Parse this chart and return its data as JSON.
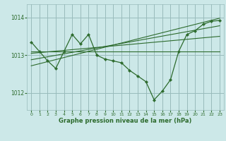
{
  "xlabel": "Graphe pression niveau de la mer (hPa)",
  "bg_color": "#cce8e8",
  "grid_color": "#99bbbb",
  "line_color": "#2d6b2d",
  "ylim": [
    1011.55,
    1014.35
  ],
  "yticks": [
    1012,
    1013,
    1014
  ],
  "xlim": [
    -0.5,
    23.5
  ],
  "xticks": [
    0,
    1,
    2,
    3,
    4,
    5,
    6,
    7,
    8,
    9,
    10,
    11,
    12,
    13,
    14,
    15,
    16,
    17,
    18,
    19,
    20,
    21,
    22,
    23
  ],
  "main_x": [
    0,
    1,
    2,
    3,
    4,
    5,
    6,
    7,
    8,
    9,
    10,
    11,
    12,
    13,
    14,
    15,
    16,
    17,
    18,
    19,
    20,
    21,
    22,
    23
  ],
  "main_y": [
    1013.35,
    1013.1,
    1012.85,
    1012.65,
    1013.1,
    1013.55,
    1013.3,
    1013.55,
    1013.0,
    1012.9,
    1012.85,
    1012.8,
    1012.6,
    1012.45,
    1012.3,
    1011.82,
    1012.05,
    1012.35,
    1013.1,
    1013.55,
    1013.65,
    1013.82,
    1013.9,
    1013.92
  ],
  "trend1_x": [
    0,
    23
  ],
  "trend1_y": [
    1013.1,
    1013.1
  ],
  "trend2_x": [
    0,
    23
  ],
  "trend2_y": [
    1013.05,
    1013.5
  ],
  "trend3_x": [
    0,
    23
  ],
  "trend3_y": [
    1012.88,
    1013.78
  ],
  "trend4_x": [
    0,
    23
  ],
  "trend4_y": [
    1012.72,
    1013.98
  ]
}
